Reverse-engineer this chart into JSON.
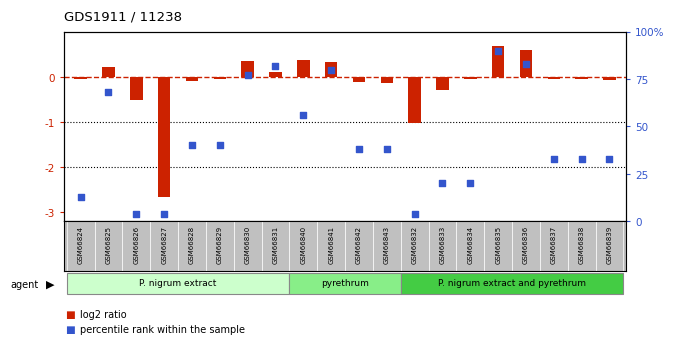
{
  "title": "GDS1911 / 11238",
  "samples": [
    "GSM66824",
    "GSM66825",
    "GSM66826",
    "GSM66827",
    "GSM66828",
    "GSM66829",
    "GSM66830",
    "GSM66831",
    "GSM66840",
    "GSM66841",
    "GSM66842",
    "GSM66843",
    "GSM66832",
    "GSM66833",
    "GSM66834",
    "GSM66835",
    "GSM66836",
    "GSM66837",
    "GSM66838",
    "GSM66839"
  ],
  "log2_ratio": [
    -0.04,
    0.22,
    -0.52,
    -2.65,
    -0.1,
    -0.06,
    0.35,
    0.1,
    0.38,
    0.32,
    -0.12,
    -0.14,
    -1.02,
    -0.3,
    -0.06,
    0.68,
    0.6,
    -0.06,
    -0.04,
    -0.08
  ],
  "percentile_rank": [
    13,
    68,
    4,
    4,
    40,
    40,
    77,
    82,
    56,
    80,
    38,
    38,
    4,
    20,
    20,
    90,
    83,
    33,
    33,
    33
  ],
  "groups": [
    {
      "label": "P. nigrum extract",
      "start": 0,
      "end": 8,
      "color": "#ccffcc"
    },
    {
      "label": "pyrethrum",
      "start": 8,
      "end": 12,
      "color": "#88ee88"
    },
    {
      "label": "P. nigrum extract and pyrethrum",
      "start": 12,
      "end": 20,
      "color": "#44cc44"
    }
  ],
  "bar_color": "#cc2200",
  "dot_color": "#3355cc",
  "dashed_line_color": "#cc2200",
  "ylim_left": [
    -3.2,
    1.0
  ],
  "ylim_right": [
    0,
    100
  ],
  "yticks_left": [
    -3,
    -2,
    -1,
    0
  ],
  "yticks_right": [
    0,
    25,
    50,
    75,
    100
  ],
  "ytick_right_labels": [
    "0",
    "25",
    "50",
    "75",
    "100%"
  ],
  "hline_dotted": [
    -1,
    -2
  ],
  "bg_color": "#ffffff",
  "plot_bg_color": "#ffffff",
  "legend_red": "log2 ratio",
  "legend_blue": "percentile rank within the sample",
  "agent_label": "agent",
  "bar_width": 0.45
}
